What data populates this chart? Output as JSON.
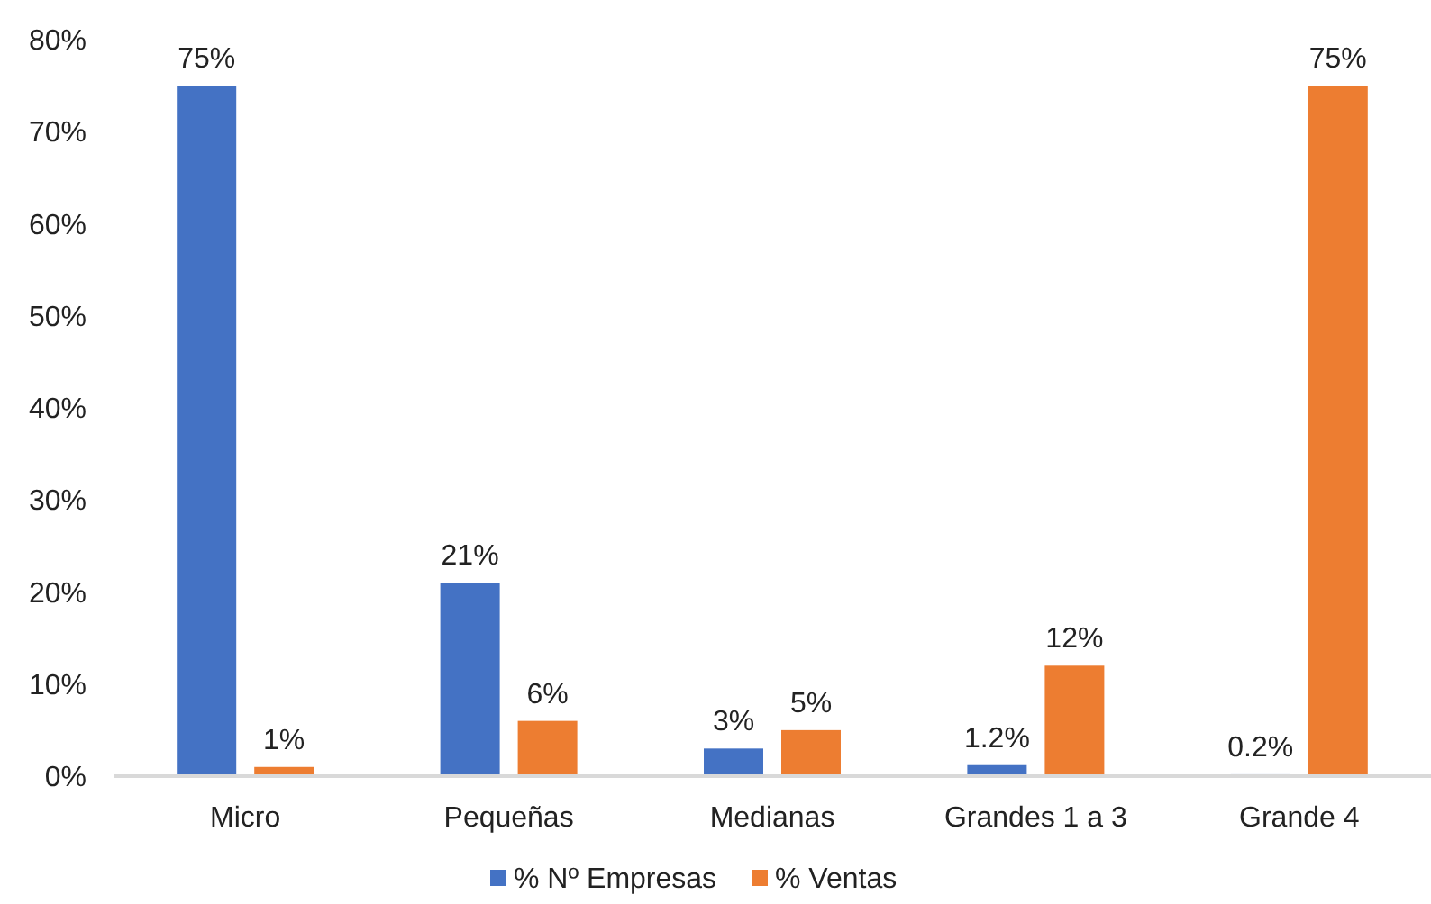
{
  "chart_data": {
    "type": "bar",
    "categories": [
      "Micro",
      "Pequeñas",
      "Medianas",
      "Grandes 1 a 3",
      "Grande 4"
    ],
    "series": [
      {
        "name": "% Nº Empresas",
        "color": "#4472c4",
        "values": [
          75,
          21,
          3,
          1.2,
          0.2
        ],
        "value_labels": [
          "75%",
          "21%",
          "3%",
          "1.2%",
          "0.2%"
        ]
      },
      {
        "name": "% Ventas",
        "color": "#ed7d31",
        "values": [
          1,
          6,
          5,
          12,
          75
        ],
        "value_labels": [
          "1%",
          "6%",
          "5%",
          "12%",
          "75%"
        ]
      }
    ],
    "ylim": [
      0,
      80
    ],
    "yticks": [
      {
        "value": 0,
        "label": "0%"
      },
      {
        "value": 10,
        "label": "10%"
      },
      {
        "value": 20,
        "label": "20%"
      },
      {
        "value": 30,
        "label": "30%"
      },
      {
        "value": 40,
        "label": "40%"
      },
      {
        "value": 50,
        "label": "50%"
      },
      {
        "value": 60,
        "label": "60%"
      },
      {
        "value": 70,
        "label": "70%"
      },
      {
        "value": 80,
        "label": "80%"
      }
    ],
    "grid": false,
    "legend": "bottom"
  }
}
